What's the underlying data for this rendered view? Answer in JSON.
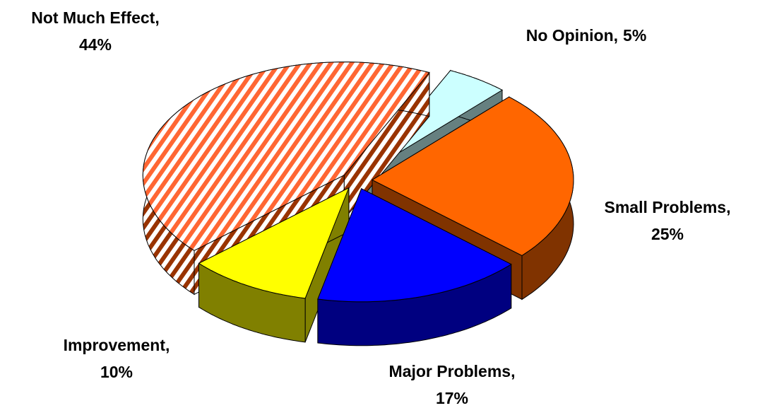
{
  "chart_data": {
    "type": "pie3d",
    "categories": [
      "No Opinion,",
      "Small Problems,",
      "Major Problems,",
      "Improvement,",
      "Not Much Effect,"
    ],
    "values": [
      5,
      25,
      17,
      10,
      44
    ],
    "value_labels": [
      "5%",
      "25%",
      "17%",
      "10%",
      "44%"
    ],
    "colors": [
      "#ccffff",
      "#ff6600",
      "#0000ff",
      "#ffff00",
      "#ff6633"
    ],
    "patterns": [
      null,
      null,
      null,
      null,
      "stripes"
    ],
    "exploded": true
  }
}
